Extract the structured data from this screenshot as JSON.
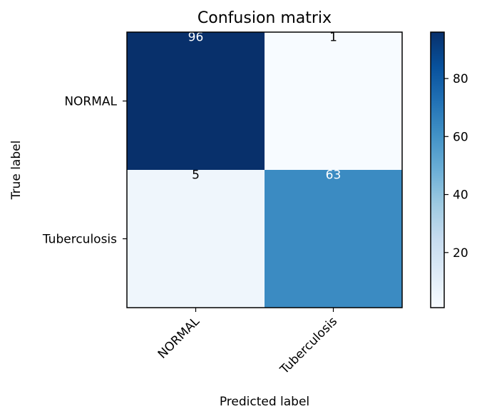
{
  "chart_data": {
    "type": "heatmap",
    "title": "Confusion matrix",
    "xlabel": "Predicted label",
    "ylabel": "True label",
    "x_categories": [
      "NORMAL",
      "Tuberculosis"
    ],
    "y_categories": [
      "NORMAL",
      "Tuberculosis"
    ],
    "values": [
      [
        96,
        1
      ],
      [
        5,
        63
      ]
    ],
    "colormap": "Blues",
    "colorbar": {
      "min": 1,
      "max": 96,
      "ticks": [
        20,
        40,
        60,
        80
      ],
      "tick_labels": [
        "20",
        "40",
        "60",
        "80"
      ]
    },
    "grid": false
  }
}
